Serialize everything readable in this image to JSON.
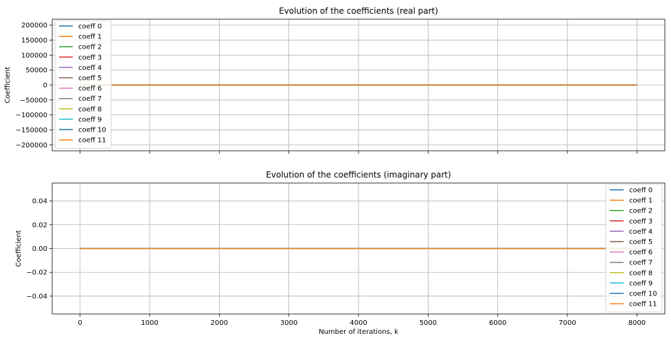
{
  "chart_data": [
    {
      "type": "line",
      "title": "Evolution of the coefficients (real part)",
      "xlabel": "",
      "ylabel": "Coefficient",
      "xlim": [
        -400,
        8400
      ],
      "ylim": [
        -220000,
        220000
      ],
      "xticks": [
        0,
        1000,
        2000,
        3000,
        4000,
        5000,
        6000,
        7000,
        8000
      ],
      "xtick_labels_visible": false,
      "yticks": [
        -200000,
        -150000,
        -100000,
        -50000,
        0,
        50000,
        100000,
        150000,
        200000
      ],
      "ytick_labels": [
        "−200000",
        "−150000",
        "−100000",
        "−50000",
        "0",
        "50000",
        "100000",
        "150000",
        "200000"
      ],
      "grid": true,
      "legend_position": "upper-left",
      "series": [
        {
          "name": "coeff 0",
          "color": "#1f77b4",
          "x": [
            0,
            8000
          ],
          "y": [
            0,
            0
          ]
        },
        {
          "name": "coeff 1",
          "color": "#ff7f0e",
          "x": [
            0,
            8000
          ],
          "y": [
            0,
            0
          ]
        },
        {
          "name": "coeff 2",
          "color": "#2ca02c",
          "x": [
            0,
            8000
          ],
          "y": [
            0,
            0
          ]
        },
        {
          "name": "coeff 3",
          "color": "#d62728",
          "x": [
            0,
            8000
          ],
          "y": [
            0,
            0
          ]
        },
        {
          "name": "coeff 4",
          "color": "#9467bd",
          "x": [
            0,
            8000
          ],
          "y": [
            0,
            0
          ]
        },
        {
          "name": "coeff 5",
          "color": "#8c564b",
          "x": [
            0,
            8000
          ],
          "y": [
            0,
            0
          ]
        },
        {
          "name": "coeff 6",
          "color": "#e377c2",
          "x": [
            0,
            8000
          ],
          "y": [
            0,
            0
          ]
        },
        {
          "name": "coeff 7",
          "color": "#7f7f7f",
          "x": [
            0,
            8000
          ],
          "y": [
            0,
            0
          ]
        },
        {
          "name": "coeff 8",
          "color": "#bcbd22",
          "x": [
            0,
            8000
          ],
          "y": [
            0,
            0
          ]
        },
        {
          "name": "coeff 9",
          "color": "#17becf",
          "x": [
            0,
            8000
          ],
          "y": [
            0,
            0
          ]
        },
        {
          "name": "coeff 10",
          "color": "#1f77b4",
          "x": [
            0,
            8000
          ],
          "y": [
            0,
            0
          ]
        },
        {
          "name": "coeff 11",
          "color": "#ff7f0e",
          "x": [
            0,
            8000
          ],
          "y": [
            0,
            0
          ]
        }
      ]
    },
    {
      "type": "line",
      "title": "Evolution of the coefficients (imaginary part)",
      "xlabel": "Number of iterations, k",
      "ylabel": "Coefficient",
      "xlim": [
        -400,
        8400
      ],
      "ylim": [
        -0.055,
        0.055
      ],
      "xticks": [
        0,
        1000,
        2000,
        3000,
        4000,
        5000,
        6000,
        7000,
        8000
      ],
      "xtick_labels": [
        "0",
        "1000",
        "2000",
        "3000",
        "4000",
        "5000",
        "6000",
        "7000",
        "8000"
      ],
      "yticks": [
        -0.04,
        -0.02,
        0.0,
        0.02,
        0.04
      ],
      "ytick_labels": [
        "−0.04",
        "−0.02",
        "0.00",
        "0.02",
        "0.04"
      ],
      "grid": true,
      "legend_position": "upper-right",
      "series": [
        {
          "name": "coeff 0",
          "color": "#1f77b4",
          "x": [
            0,
            8000
          ],
          "y": [
            0,
            0
          ]
        },
        {
          "name": "coeff 1",
          "color": "#ff7f0e",
          "x": [
            0,
            8000
          ],
          "y": [
            0,
            0
          ]
        },
        {
          "name": "coeff 2",
          "color": "#2ca02c",
          "x": [
            0,
            8000
          ],
          "y": [
            0,
            0
          ]
        },
        {
          "name": "coeff 3",
          "color": "#d62728",
          "x": [
            0,
            8000
          ],
          "y": [
            0,
            0
          ]
        },
        {
          "name": "coeff 4",
          "color": "#9467bd",
          "x": [
            0,
            8000
          ],
          "y": [
            0,
            0
          ]
        },
        {
          "name": "coeff 5",
          "color": "#8c564b",
          "x": [
            0,
            8000
          ],
          "y": [
            0,
            0
          ]
        },
        {
          "name": "coeff 6",
          "color": "#e377c2",
          "x": [
            0,
            8000
          ],
          "y": [
            0,
            0
          ]
        },
        {
          "name": "coeff 7",
          "color": "#7f7f7f",
          "x": [
            0,
            8000
          ],
          "y": [
            0,
            0
          ]
        },
        {
          "name": "coeff 8",
          "color": "#bcbd22",
          "x": [
            0,
            8000
          ],
          "y": [
            0,
            0
          ]
        },
        {
          "name": "coeff 9",
          "color": "#17becf",
          "x": [
            0,
            8000
          ],
          "y": [
            0,
            0
          ]
        },
        {
          "name": "coeff 10",
          "color": "#1f77b4",
          "x": [
            0,
            8000
          ],
          "y": [
            0,
            0
          ]
        },
        {
          "name": "coeff 11",
          "color": "#ff7f0e",
          "x": [
            0,
            8000
          ],
          "y": [
            0,
            0
          ]
        }
      ]
    }
  ],
  "colors": {
    "grid": "#b0b0b0",
    "axes": "#000000",
    "legend_border": "#cccccc"
  }
}
